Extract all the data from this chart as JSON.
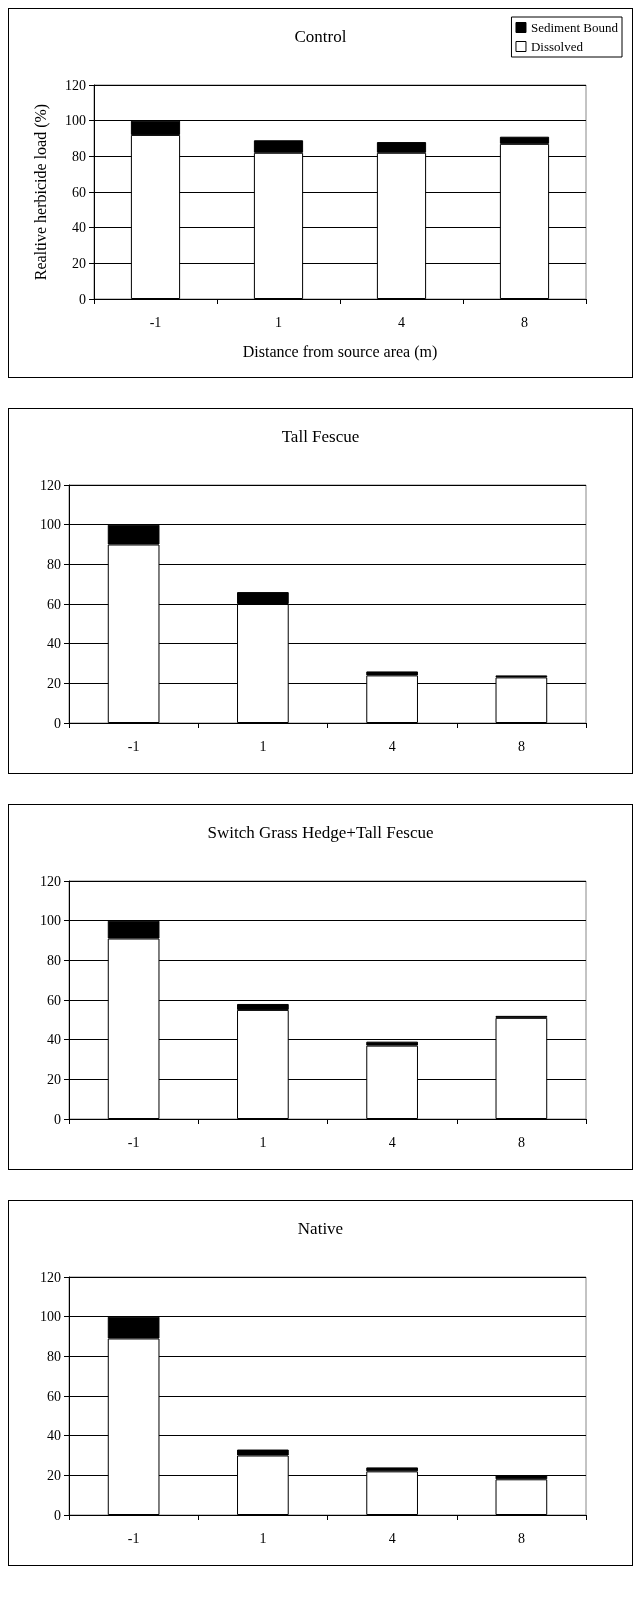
{
  "chart_data": [
    {
      "type": "bar",
      "title": "Control",
      "xlabel": "Distance from source area (m)",
      "ylabel": "Realtive herbicide load (%)",
      "categories": [
        "-1",
        "1",
        "4",
        "8"
      ],
      "stacked": true,
      "series": [
        {
          "name": "Dissolved",
          "color": "#ffffff",
          "values": [
            92,
            82,
            82,
            87
          ]
        },
        {
          "name": "Sediment Bound",
          "color": "#000000",
          "values": [
            8,
            7,
            6,
            4
          ]
        }
      ],
      "ylim": [
        0,
        120
      ],
      "yticks": [
        0,
        20,
        40,
        60,
        80,
        100,
        120
      ],
      "grid": "y",
      "legend": "top right"
    },
    {
      "type": "bar",
      "title": "Tall Fescue",
      "categories": [
        "-1",
        "1",
        "4",
        "8"
      ],
      "stacked": true,
      "series": [
        {
          "color": "#ffffff",
          "values": [
            90,
            60,
            24,
            23
          ]
        },
        {
          "color": "#000000",
          "values": [
            10,
            6,
            2,
            1
          ]
        }
      ],
      "ylim": [
        0,
        120
      ],
      "yticks": [
        0,
        20,
        40,
        60,
        80,
        100,
        120
      ],
      "grid": "y"
    },
    {
      "type": "bar",
      "title": "Switch Grass Hedge+Tall Fescue",
      "categories": [
        "-1",
        "1",
        "4",
        "8"
      ],
      "stacked": true,
      "series": [
        {
          "color": "#ffffff",
          "values": [
            91,
            55,
            37,
            51
          ]
        },
        {
          "color": "#000000",
          "values": [
            9,
            3,
            2,
            1
          ]
        }
      ],
      "ylim": [
        0,
        120
      ],
      "yticks": [
        0,
        20,
        40,
        60,
        80,
        100,
        120
      ],
      "grid": "y"
    },
    {
      "type": "bar",
      "title": "Native",
      "categories": [
        "-1",
        "1",
        "4",
        "8"
      ],
      "stacked": true,
      "series": [
        {
          "color": "#ffffff",
          "values": [
            89,
            30,
            22,
            18
          ]
        },
        {
          "color": "#000000",
          "values": [
            11,
            3,
            2,
            2
          ]
        }
      ],
      "ylim": [
        0,
        120
      ],
      "yticks": [
        0,
        20,
        40,
        60,
        80,
        100,
        120
      ],
      "grid": "y"
    }
  ]
}
